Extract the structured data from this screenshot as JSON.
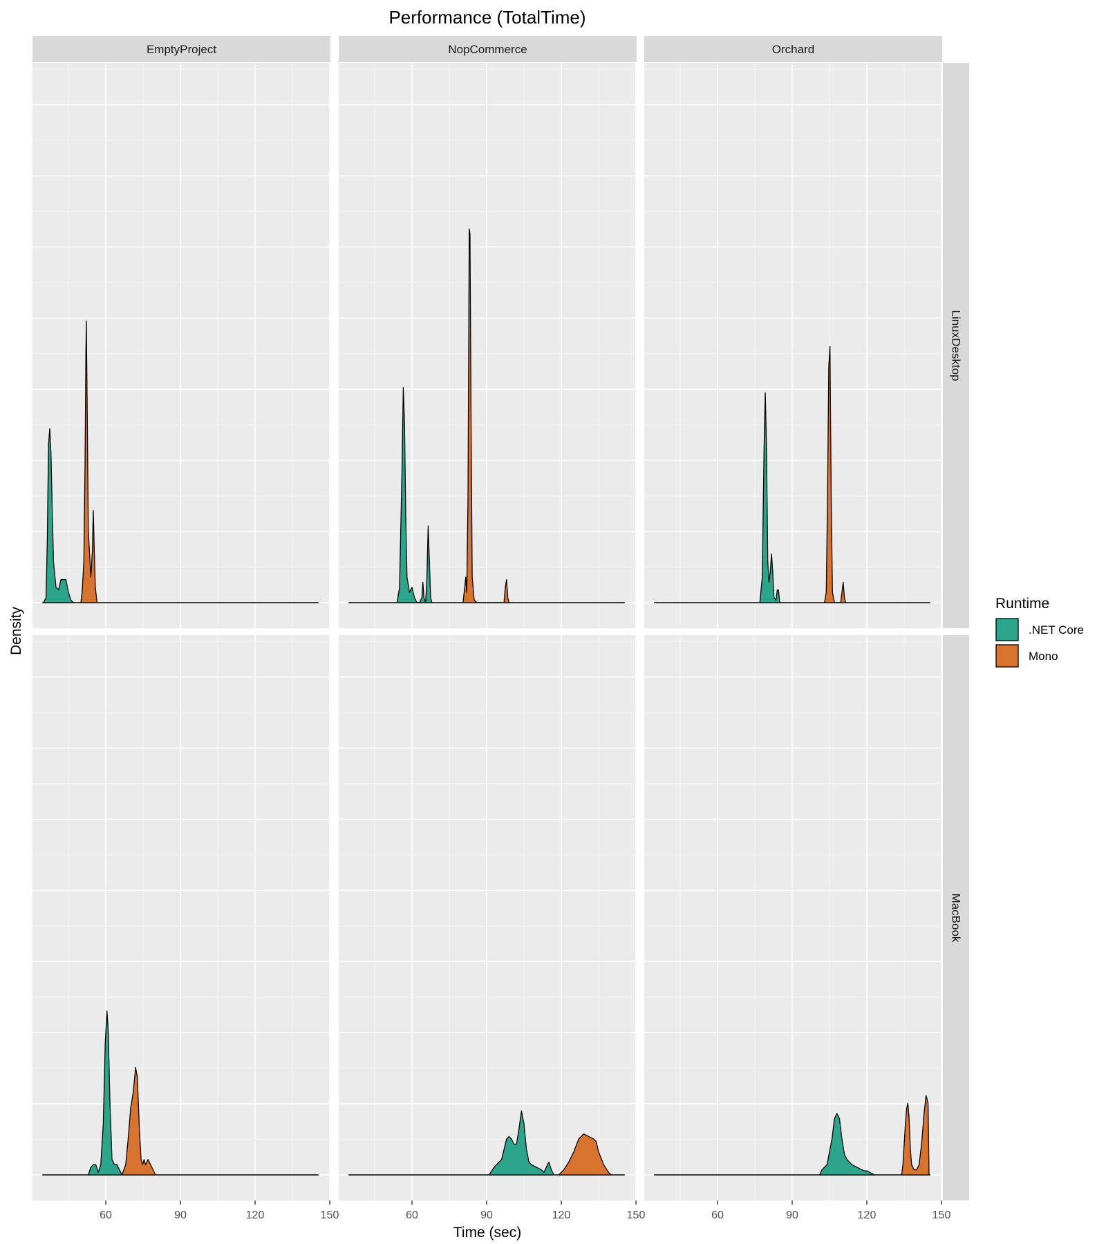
{
  "chart_data": {
    "type": "area",
    "chart_kind": "faceted-density",
    "title": "Performance (TotalTime)",
    "xlabel": "Time (sec)",
    "ylabel": "Density",
    "x_ticks": [
      60,
      90,
      120,
      150
    ],
    "xlim": [
      30,
      150
    ],
    "ylim": [
      0,
      1
    ],
    "y_scale_note": "no y tick labels shown; values are relative heights (0-1)",
    "grid": true,
    "columns": [
      "EmptyProject",
      "NopCommerce",
      "Orchard"
    ],
    "rows": [
      "LinuxDesktop",
      "MacBook"
    ],
    "legend": {
      "title": "Runtime",
      "position": "right",
      "entries": [
        {
          "name": ".NET Core",
          "color": "#2ca58d"
        },
        {
          "name": "Mono",
          "color": "#d97430"
        }
      ]
    },
    "panels": [
      {
        "column": "EmptyProject",
        "row": "LinuxDesktop",
        "series": [
          {
            "name": ".NET Core",
            "points": [
              [
                35,
                0
              ],
              [
                36,
                0.01
              ],
              [
                36.5,
                0.12
              ],
              [
                37,
                0.31
              ],
              [
                37.5,
                0.34
              ],
              [
                38,
                0.29
              ],
              [
                38.5,
                0.18
              ],
              [
                39,
                0.08
              ],
              [
                40,
                0.03
              ],
              [
                41,
                0.025
              ],
              [
                42,
                0.045
              ],
              [
                43,
                0.045
              ],
              [
                44,
                0.045
              ],
              [
                45,
                0.02
              ],
              [
                46,
                0.005
              ],
              [
                47,
                0
              ]
            ]
          },
          {
            "name": "Mono",
            "points": [
              [
                50,
                0
              ],
              [
                50.5,
                0.02
              ],
              [
                51.2,
                0.08
              ],
              [
                51.7,
                0.28
              ],
              [
                52,
                0.48
              ],
              [
                52.2,
                0.55
              ],
              [
                52.5,
                0.4
              ],
              [
                53,
                0.14
              ],
              [
                54,
                0.05
              ],
              [
                54.6,
                0.1
              ],
              [
                55,
                0.18
              ],
              [
                55.4,
                0.1
              ],
              [
                55.8,
                0.03
              ],
              [
                56.5,
                0
              ],
              [
                56.5,
                0
              ]
            ]
          }
        ]
      },
      {
        "column": "NopCommerce",
        "row": "LinuxDesktop",
        "series": [
          {
            "name": ".NET Core",
            "points": [
              [
                54,
                0
              ],
              [
                55,
                0.03
              ],
              [
                56,
                0.26
              ],
              [
                56.5,
                0.42
              ],
              [
                57,
                0.35
              ],
              [
                57.5,
                0.17
              ],
              [
                58,
                0.05
              ],
              [
                59,
                0.02
              ],
              [
                60,
                0.03
              ],
              [
                61,
                0.01
              ],
              [
                62,
                0
              ],
              [
                63,
                0
              ],
              [
                64,
                0.01
              ],
              [
                64.4,
                0.04
              ],
              [
                64.8,
                0.01
              ],
              [
                65.5,
                0
              ],
              [
                66,
                0.05
              ],
              [
                66.5,
                0.15
              ],
              [
                67,
                0.08
              ],
              [
                67.5,
                0.01
              ],
              [
                68,
                0
              ]
            ]
          },
          {
            "name": "Mono",
            "points": [
              [
                80.5,
                0
              ],
              [
                81.2,
                0.03
              ],
              [
                81.6,
                0.05
              ],
              [
                82,
                0.02
              ],
              [
                82.5,
                0.2
              ],
              [
                83,
                0.73
              ],
              [
                83.3,
                0.72
              ],
              [
                83.7,
                0.4
              ],
              [
                84.2,
                0.05
              ],
              [
                85,
                0.005
              ],
              [
                86,
                0
              ],
              [
                97,
                0
              ],
              [
                97.5,
                0.03
              ],
              [
                98,
                0.045
              ],
              [
                98.5,
                0.01
              ],
              [
                99,
                0
              ]
            ]
          }
        ]
      },
      {
        "column": "Orchard",
        "row": "LinuxDesktop",
        "series": [
          {
            "name": ".NET Core",
            "points": [
              [
                77,
                0
              ],
              [
                78,
                0.05
              ],
              [
                78.7,
                0.3
              ],
              [
                79.2,
                0.41
              ],
              [
                79.7,
                0.3
              ],
              [
                80.2,
                0.08
              ],
              [
                80.7,
                0.04
              ],
              [
                81.2,
                0.06
              ],
              [
                81.7,
                0.095
              ],
              [
                82.2,
                0.06
              ],
              [
                82.7,
                0.01
              ],
              [
                83.5,
                0.005
              ],
              [
                84,
                0.025
              ],
              [
                84.5,
                0.025
              ],
              [
                85,
                0
              ],
              [
                85.5,
                0
              ]
            ]
          },
          {
            "name": "Mono",
            "points": [
              [
                103,
                0
              ],
              [
                103.7,
                0.02
              ],
              [
                104.2,
                0.2
              ],
              [
                104.7,
                0.46
              ],
              [
                105.2,
                0.5
              ],
              [
                105.7,
                0.2
              ],
              [
                106.2,
                0.02
              ],
              [
                107,
                0
              ],
              [
                109.5,
                0
              ],
              [
                110,
                0.02
              ],
              [
                110.5,
                0.04
              ],
              [
                111,
                0.01
              ],
              [
                111.5,
                0
              ]
            ]
          }
        ]
      },
      {
        "column": "EmptyProject",
        "row": "MacBook",
        "series": [
          {
            "name": ".NET Core",
            "points": [
              [
                53,
                0
              ],
              [
                54,
                0.015
              ],
              [
                55,
                0.02
              ],
              [
                56,
                0.02
              ],
              [
                57,
                0.005
              ],
              [
                58,
                0.02
              ],
              [
                59,
                0.1
              ],
              [
                59.8,
                0.26
              ],
              [
                60.5,
                0.32
              ],
              [
                61,
                0.28
              ],
              [
                61.7,
                0.14
              ],
              [
                62.5,
                0.03
              ],
              [
                63.5,
                0.02
              ],
              [
                64.5,
                0.02
              ],
              [
                65.5,
                0.01
              ],
              [
                66.5,
                0
              ]
            ]
          },
          {
            "name": "Mono",
            "points": [
              [
                66.5,
                0
              ],
              [
                68,
                0.02
              ],
              [
                69,
                0.07
              ],
              [
                70,
                0.13
              ],
              [
                71,
                0.16
              ],
              [
                72,
                0.21
              ],
              [
                72.7,
                0.19
              ],
              [
                73.5,
                0.09
              ],
              [
                74.2,
                0.03
              ],
              [
                74.8,
                0.02
              ],
              [
                75.4,
                0.03
              ],
              [
                76,
                0.02
              ],
              [
                77,
                0.03
              ],
              [
                78,
                0.02
              ],
              [
                79,
                0.01
              ],
              [
                80,
                0
              ]
            ]
          }
        ]
      },
      {
        "column": "NopCommerce",
        "row": "MacBook",
        "series": [
          {
            "name": ".NET Core",
            "points": [
              [
                91,
                0
              ],
              [
                93,
                0.015
              ],
              [
                95,
                0.025
              ],
              [
                96,
                0.03
              ],
              [
                97,
                0.05
              ],
              [
                98,
                0.07
              ],
              [
                99,
                0.075
              ],
              [
                100,
                0.07
              ],
              [
                101,
                0.06
              ],
              [
                102,
                0.06
              ],
              [
                103,
                0.09
              ],
              [
                104,
                0.125
              ],
              [
                105,
                0.1
              ],
              [
                106,
                0.05
              ],
              [
                107,
                0.025
              ],
              [
                108,
                0.02
              ],
              [
                110,
                0.015
              ],
              [
                112,
                0.01
              ],
              [
                113,
                0.005
              ],
              [
                114,
                0.015
              ],
              [
                115,
                0.025
              ],
              [
                116,
                0.01
              ],
              [
                117,
                0
              ]
            ]
          },
          {
            "name": "Mono",
            "points": [
              [
                119,
                0
              ],
              [
                121,
                0.01
              ],
              [
                123,
                0.025
              ],
              [
                125,
                0.045
              ],
              [
                127,
                0.07
              ],
              [
                129,
                0.08
              ],
              [
                131,
                0.075
              ],
              [
                133,
                0.07
              ],
              [
                134,
                0.065
              ],
              [
                135,
                0.045
              ],
              [
                137,
                0.02
              ],
              [
                139,
                0.005
              ],
              [
                140,
                0
              ]
            ]
          }
        ]
      },
      {
        "column": "Orchard",
        "row": "MacBook",
        "series": [
          {
            "name": ".NET Core",
            "points": [
              [
                101,
                0
              ],
              [
                102,
                0.01
              ],
              [
                104,
                0.02
              ],
              [
                106,
                0.07
              ],
              [
                107,
                0.11
              ],
              [
                108,
                0.12
              ],
              [
                109,
                0.11
              ],
              [
                110,
                0.07
              ],
              [
                111,
                0.04
              ],
              [
                112,
                0.03
              ],
              [
                114,
                0.02
              ],
              [
                116,
                0.015
              ],
              [
                118,
                0.01
              ],
              [
                119,
                0.008
              ],
              [
                120,
                0.008
              ],
              [
                121.5,
                0.004
              ],
              [
                123,
                0
              ]
            ]
          },
          {
            "name": "Mono",
            "points": [
              [
                134,
                0
              ],
              [
                134.5,
                0.02
              ],
              [
                135,
                0.06
              ],
              [
                135.5,
                0.1
              ],
              [
                136,
                0.13
              ],
              [
                136.5,
                0.14
              ],
              [
                137,
                0.11
              ],
              [
                137.5,
                0.05
              ],
              [
                138,
                0.02
              ],
              [
                139,
                0.01
              ],
              [
                140,
                0.01
              ],
              [
                141,
                0.02
              ],
              [
                142,
                0.06
              ],
              [
                143,
                0.12
              ],
              [
                143.8,
                0.155
              ],
              [
                144.6,
                0.14
              ],
              [
                145,
                0
              ]
            ]
          }
        ]
      }
    ]
  }
}
